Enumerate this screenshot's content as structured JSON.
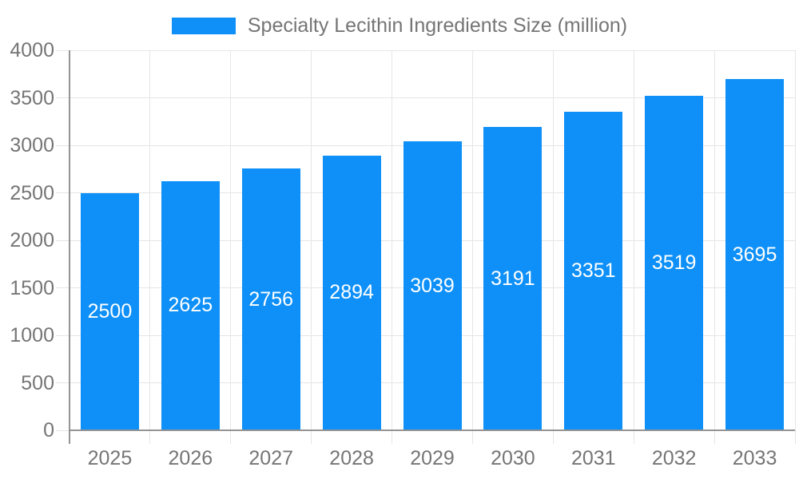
{
  "chart_data": {
    "type": "bar",
    "title": "Specialty Lecithin Ingredients Size (million)",
    "categories": [
      "2025",
      "2026",
      "2027",
      "2028",
      "2029",
      "2030",
      "2031",
      "2032",
      "2033"
    ],
    "values": [
      2500,
      2625,
      2756,
      2894,
      3039,
      3191,
      3351,
      3519,
      3695
    ],
    "xlabel": "",
    "ylabel": "",
    "ylim": [
      0,
      4000
    ],
    "yticks": [
      0,
      500,
      1000,
      1500,
      2000,
      2500,
      3000,
      3500,
      4000
    ],
    "grid": true,
    "legend_position": "top-center",
    "bar_labels_visible": true,
    "bar_label_position": "center-inside"
  },
  "colors": {
    "bar": "#0E90F8",
    "bar_label": "#FFFFFF",
    "axis_text": "#757575",
    "grid_line": "#E6E6E6",
    "axis_line": "#949494",
    "background": "#FFFFFF"
  }
}
